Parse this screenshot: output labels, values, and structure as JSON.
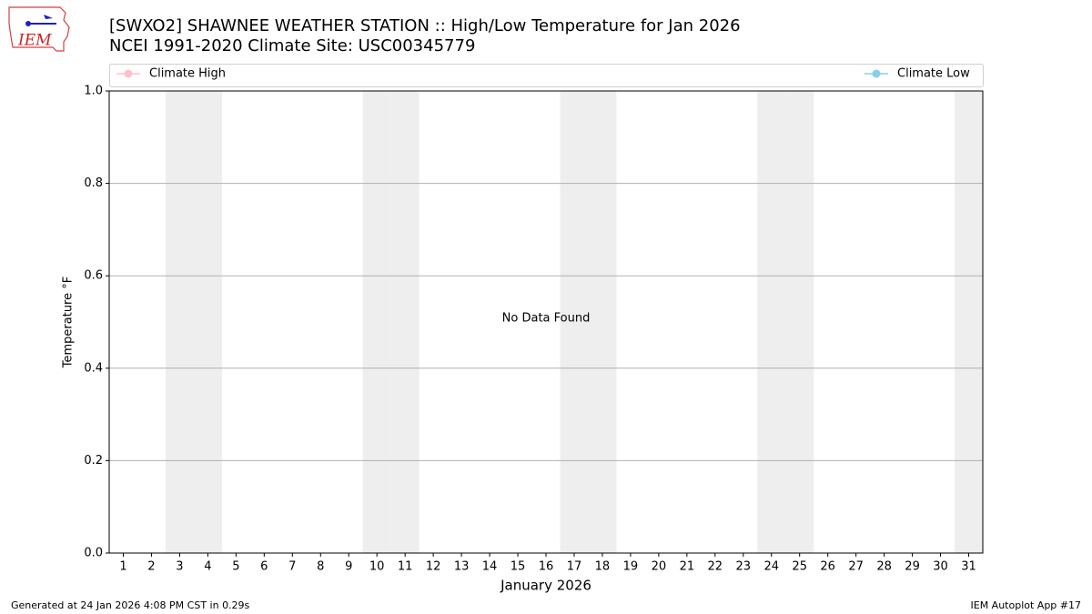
{
  "chart_data": {
    "type": "line",
    "title": "[SWXO2] SHAWNEE WEATHER STATION :: High/Low Temperature for Jan 2026",
    "subtitle": "NCEI 1991-2020 Climate Site: USC00345779",
    "logo_text": "IEM",
    "xlabel": "January 2026",
    "ylabel": "Temperature °F",
    "annotation": "No Data Found",
    "footer_left": "Generated at 24 Jan 2026 4:08 PM CST in 0.29s",
    "footer_right": "IEM Autoplot App #17",
    "categories": [
      "1",
      "2",
      "3",
      "4",
      "5",
      "6",
      "7",
      "8",
      "9",
      "10",
      "11",
      "12",
      "13",
      "14",
      "15",
      "16",
      "17",
      "18",
      "19",
      "20",
      "21",
      "22",
      "23",
      "24",
      "25",
      "26",
      "27",
      "28",
      "29",
      "30",
      "31"
    ],
    "shaded_categories": [
      2,
      3,
      9,
      10,
      16,
      17,
      23,
      24,
      30
    ],
    "shade_color": "#eeeeee",
    "series": [
      {
        "name": "Climate High",
        "color": "#ffc0cb",
        "values": [
          null,
          null,
          null,
          null,
          null,
          null,
          null,
          null,
          null,
          null,
          null,
          null,
          null,
          null,
          null,
          null,
          null,
          null,
          null,
          null,
          null,
          null,
          null,
          null,
          null,
          null,
          null,
          null,
          null,
          null,
          null
        ]
      },
      {
        "name": "Climate Low",
        "color": "#87ceeb",
        "values": [
          null,
          null,
          null,
          null,
          null,
          null,
          null,
          null,
          null,
          null,
          null,
          null,
          null,
          null,
          null,
          null,
          null,
          null,
          null,
          null,
          null,
          null,
          null,
          null,
          null,
          null,
          null,
          null,
          null,
          null,
          null
        ]
      }
    ],
    "ylim": [
      0,
      1
    ],
    "yticks": [
      {
        "value": 0,
        "label": "0.0"
      },
      0.2,
      0.4,
      0.6,
      0.8,
      {
        "value": 1,
        "label": "1.0"
      }
    ],
    "grid": true
  }
}
